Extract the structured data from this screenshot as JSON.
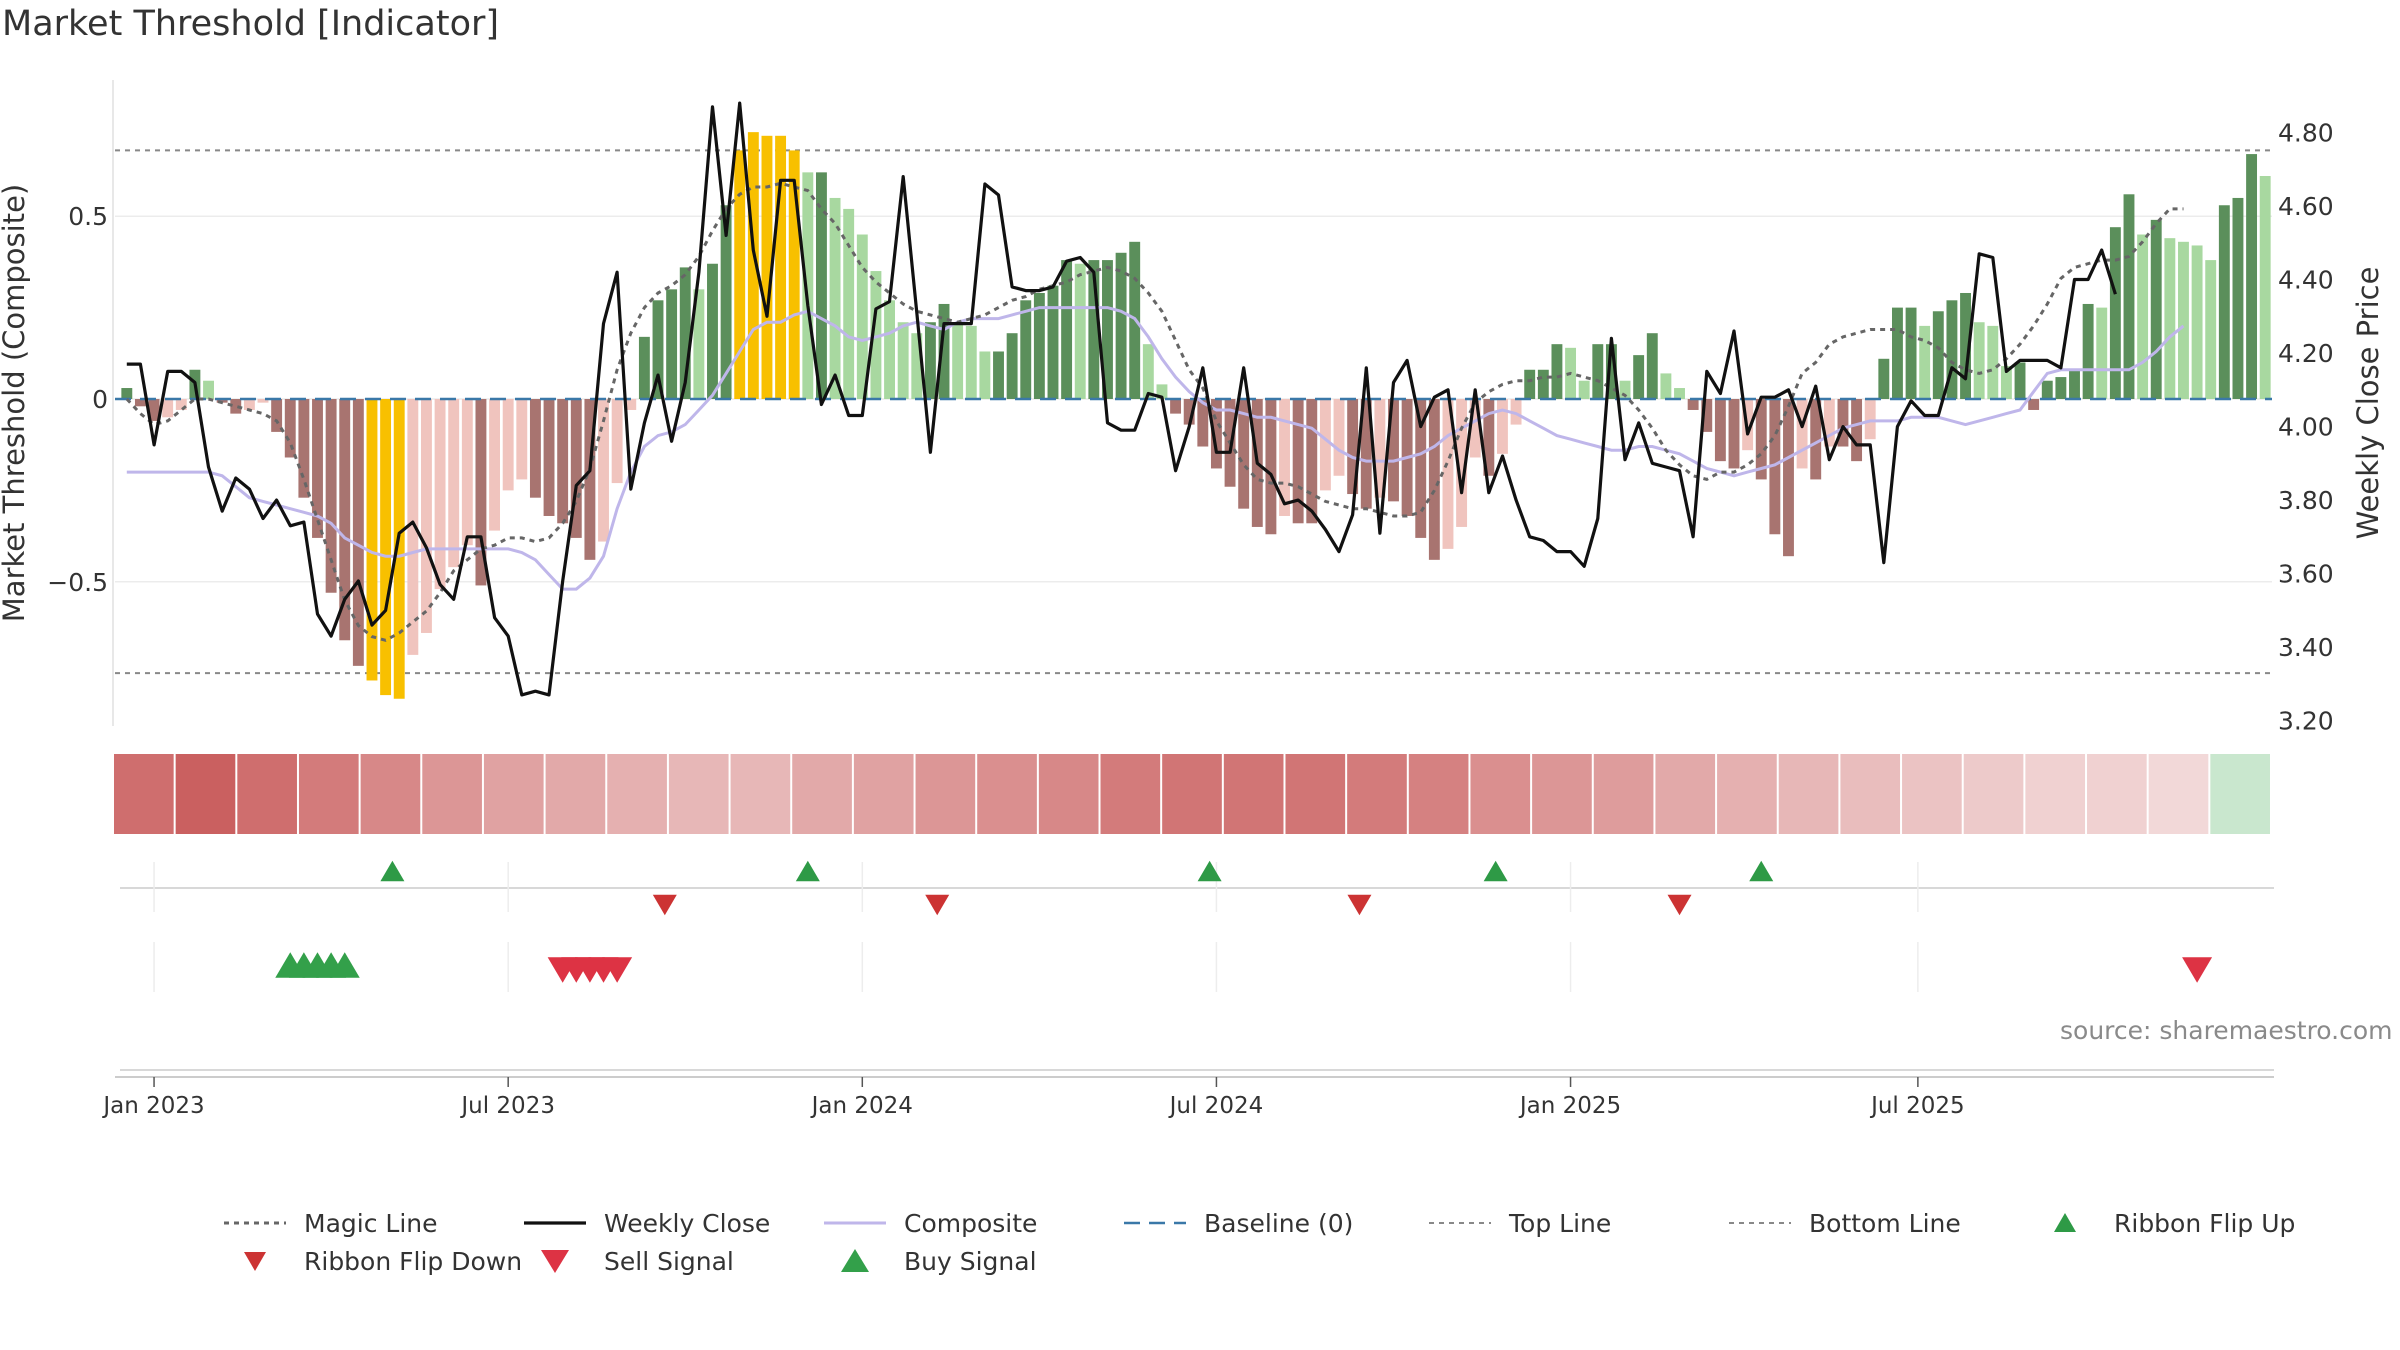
{
  "chart_data": {
    "type": "bar",
    "title": "Market Threshold [Indicator]",
    "ylabel": "Market Threshold (Composite)",
    "y2label": "Weekly Close Price",
    "source": "source: sharemaestro.com",
    "ylim": [
      -0.9,
      0.9
    ],
    "y2lim": [
      3.18,
      4.97
    ],
    "yticks": [
      {
        "v": 0.5,
        "label": "0.5"
      },
      {
        "v": 0,
        "label": "0"
      },
      {
        "v": -0.5,
        "label": "−0.5"
      }
    ],
    "y2ticks": [
      "3.20",
      "3.40",
      "3.60",
      "3.80",
      "4.00",
      "4.20",
      "4.40",
      "4.60",
      "4.80"
    ],
    "xticks": [
      {
        "label": "Jan 2023",
        "index": 2
      },
      {
        "label": "Jul 2023",
        "index": 28
      },
      {
        "label": "Jan 2024",
        "index": 54
      },
      {
        "label": "Jul 2024",
        "index": 80
      },
      {
        "label": "Jan 2025",
        "index": 106
      },
      {
        "label": "Jul 2025",
        "index": 131.5
      }
    ],
    "top_line": 0.68,
    "bottom_line": -0.75,
    "baseline": 0,
    "composite": [
      0.03,
      -0.02,
      -0.06,
      -0.05,
      -0.03,
      0.08,
      0.05,
      -0.01,
      -0.04,
      -0.03,
      -0.01,
      -0.09,
      -0.16,
      -0.27,
      -0.38,
      -0.53,
      -0.66,
      -0.73,
      -0.77,
      -0.81,
      -0.82,
      -0.7,
      -0.64,
      -0.52,
      -0.46,
      -0.4,
      -0.51,
      -0.36,
      -0.25,
      -0.22,
      -0.27,
      -0.32,
      -0.34,
      -0.38,
      -0.44,
      -0.39,
      -0.23,
      -0.03,
      0.17,
      0.27,
      0.3,
      0.36,
      0.3,
      0.37,
      0.53,
      0.68,
      0.73,
      0.72,
      0.72,
      0.68,
      0.62,
      0.62,
      0.55,
      0.52,
      0.45,
      0.35,
      0.27,
      0.21,
      0.18,
      0.21,
      0.26,
      0.21,
      0.2,
      0.13,
      0.13,
      0.18,
      0.27,
      0.29,
      0.31,
      0.38,
      0.37,
      0.38,
      0.38,
      0.4,
      0.43,
      0.15,
      0.04,
      -0.04,
      -0.07,
      -0.13,
      -0.19,
      -0.24,
      -0.3,
      -0.35,
      -0.37,
      -0.32,
      -0.34,
      -0.34,
      -0.25,
      -0.21,
      -0.26,
      -0.3,
      -0.27,
      -0.28,
      -0.32,
      -0.38,
      -0.44,
      -0.41,
      -0.35,
      -0.16,
      -0.21,
      -0.15,
      -0.07,
      0.08,
      0.08,
      0.15,
      0.14,
      0.05,
      0.15,
      0.15,
      0.05,
      0.12,
      0.18,
      0.07,
      0.03,
      -0.03,
      -0.09,
      -0.17,
      -0.19,
      -0.14,
      -0.22,
      -0.37,
      -0.43,
      -0.19,
      -0.22,
      -0.13,
      -0.13,
      -0.17,
      -0.11,
      0.11,
      0.25,
      0.25,
      0.2,
      0.24,
      0.27,
      0.29,
      0.21,
      0.2,
      0.09,
      0.1,
      -0.03,
      0.05,
      0.06,
      0.08,
      0.26,
      0.25,
      0.47,
      0.56,
      0.45,
      0.49,
      0.44,
      0.43,
      0.42,
      0.38,
      0.53,
      0.55,
      0.67,
      0.61
    ],
    "weekly_close": [
      4.17,
      4.17,
      3.95,
      4.15,
      4.15,
      4.12,
      3.89,
      3.77,
      3.86,
      3.83,
      3.75,
      3.8,
      3.73,
      3.74,
      3.49,
      3.43,
      3.53,
      3.58,
      3.46,
      3.5,
      3.71,
      3.74,
      3.67,
      3.57,
      3.53,
      3.7,
      3.7,
      3.48,
      3.43,
      3.27,
      3.28,
      3.27,
      3.58,
      3.84,
      3.88,
      4.28,
      4.42,
      3.83,
      4.01,
      4.14,
      3.96,
      4.12,
      4.42,
      4.87,
      4.52,
      4.88,
      4.48,
      4.3,
      4.67,
      4.67,
      4.33,
      4.06,
      4.14,
      4.03,
      4.03,
      4.32,
      4.34,
      4.68,
      4.31,
      3.93,
      4.28,
      4.28,
      4.28,
      4.66,
      4.63,
      4.38,
      4.37,
      4.37,
      4.38,
      4.45,
      4.46,
      4.42,
      4.01,
      3.99,
      3.99,
      4.09,
      4.08,
      3.88,
      4.0,
      4.16,
      3.93,
      3.93,
      4.16,
      3.9,
      3.87,
      3.79,
      3.8,
      3.77,
      3.72,
      3.66,
      3.76,
      4.16,
      3.71,
      4.12,
      4.18,
      4.0,
      4.08,
      4.1,
      3.82,
      4.1,
      3.82,
      3.92,
      3.8,
      3.7,
      3.69,
      3.66,
      3.66,
      3.62,
      3.75,
      4.24,
      3.91,
      4.01,
      3.9,
      3.89,
      3.88,
      3.7,
      4.15,
      4.09,
      4.26,
      3.98,
      4.08,
      4.08,
      4.1,
      4.0,
      4.11,
      3.91,
      4.0,
      3.95,
      3.95,
      3.63,
      4.0,
      4.07,
      4.03,
      4.03,
      4.16,
      4.13,
      4.47,
      4.46,
      4.15,
      4.18,
      4.18,
      4.18,
      4.16,
      4.4,
      4.4,
      4.48,
      4.36
    ],
    "magic_line": [
      0.0,
      -0.04,
      -0.07,
      -0.06,
      -0.03,
      0.0,
      0.0,
      -0.01,
      -0.02,
      -0.03,
      -0.04,
      -0.06,
      -0.12,
      -0.22,
      -0.33,
      -0.44,
      -0.55,
      -0.62,
      -0.65,
      -0.66,
      -0.64,
      -0.61,
      -0.58,
      -0.53,
      -0.47,
      -0.44,
      -0.41,
      -0.4,
      -0.38,
      -0.38,
      -0.39,
      -0.38,
      -0.34,
      -0.28,
      -0.19,
      -0.06,
      0.08,
      0.18,
      0.25,
      0.29,
      0.31,
      0.34,
      0.39,
      0.46,
      0.52,
      0.56,
      0.58,
      0.58,
      0.59,
      0.58,
      0.57,
      0.52,
      0.48,
      0.42,
      0.36,
      0.32,
      0.29,
      0.26,
      0.24,
      0.23,
      0.22,
      0.21,
      0.22,
      0.23,
      0.25,
      0.27,
      0.28,
      0.3,
      0.31,
      0.32,
      0.34,
      0.35,
      0.36,
      0.35,
      0.33,
      0.29,
      0.24,
      0.16,
      0.08,
      0.03,
      -0.06,
      -0.12,
      -0.18,
      -0.22,
      -0.23,
      -0.23,
      -0.24,
      -0.26,
      -0.28,
      -0.29,
      -0.3,
      -0.3,
      -0.31,
      -0.32,
      -0.32,
      -0.31,
      -0.25,
      -0.17,
      -0.08,
      -0.01,
      0.02,
      0.04,
      0.05,
      0.05,
      0.06,
      0.06,
      0.07,
      0.06,
      0.05,
      0.03,
      0.01,
      -0.03,
      -0.08,
      -0.14,
      -0.18,
      -0.21,
      -0.22,
      -0.2,
      -0.2,
      -0.18,
      -0.15,
      -0.1,
      -0.02,
      0.07,
      0.1,
      0.15,
      0.17,
      0.18,
      0.19,
      0.19,
      0.19,
      0.17,
      0.16,
      0.14,
      0.1,
      0.08,
      0.07,
      0.08,
      0.11,
      0.15,
      0.2,
      0.26,
      0.33,
      0.36,
      0.37,
      0.38,
      0.38,
      0.39,
      0.43,
      0.48,
      0.52,
      0.52
    ],
    "composite_line": [
      -0.2,
      -0.2,
      -0.2,
      -0.2,
      -0.2,
      -0.2,
      -0.2,
      -0.21,
      -0.24,
      -0.27,
      -0.28,
      -0.29,
      -0.3,
      -0.31,
      -0.32,
      -0.34,
      -0.38,
      -0.4,
      -0.42,
      -0.43,
      -0.43,
      -0.42,
      -0.41,
      -0.41,
      -0.41,
      -0.41,
      -0.41,
      -0.41,
      -0.41,
      -0.42,
      -0.44,
      -0.48,
      -0.52,
      -0.52,
      -0.49,
      -0.43,
      -0.3,
      -0.2,
      -0.13,
      -0.1,
      -0.09,
      -0.07,
      -0.03,
      0.01,
      0.07,
      0.13,
      0.19,
      0.21,
      0.21,
      0.23,
      0.24,
      0.22,
      0.2,
      0.17,
      0.16,
      0.17,
      0.18,
      0.2,
      0.21,
      0.2,
      0.19,
      0.21,
      0.22,
      0.22,
      0.22,
      0.23,
      0.24,
      0.25,
      0.25,
      0.25,
      0.25,
      0.25,
      0.25,
      0.24,
      0.22,
      0.17,
      0.11,
      0.06,
      0.02,
      -0.01,
      -0.03,
      -0.03,
      -0.04,
      -0.05,
      -0.05,
      -0.06,
      -0.07,
      -0.08,
      -0.11,
      -0.14,
      -0.16,
      -0.17,
      -0.17,
      -0.17,
      -0.16,
      -0.15,
      -0.13,
      -0.1,
      -0.08,
      -0.06,
      -0.04,
      -0.03,
      -0.04,
      -0.06,
      -0.08,
      -0.1,
      -0.11,
      -0.12,
      -0.13,
      -0.14,
      -0.14,
      -0.13,
      -0.13,
      -0.14,
      -0.15,
      -0.17,
      -0.19,
      -0.2,
      -0.21,
      -0.2,
      -0.19,
      -0.18,
      -0.16,
      -0.14,
      -0.12,
      -0.1,
      -0.08,
      -0.07,
      -0.06,
      -0.06,
      -0.06,
      -0.05,
      -0.05,
      -0.05,
      -0.06,
      -0.07,
      -0.06,
      -0.05,
      -0.04,
      -0.03,
      0.02,
      0.07,
      0.08,
      0.08,
      0.08,
      0.08,
      0.08,
      0.08,
      0.1,
      0.13,
      0.17,
      0.2
    ],
    "ribbon": [
      0.85,
      0.95,
      0.85,
      0.75,
      0.65,
      0.55,
      0.45,
      0.4,
      0.35,
      0.3,
      0.3,
      0.4,
      0.45,
      0.55,
      0.6,
      0.65,
      0.75,
      0.8,
      0.8,
      0.8,
      0.75,
      0.7,
      0.6,
      0.55,
      0.5,
      0.4,
      0.35,
      0.3,
      0.25,
      0.2,
      0.15,
      0.1,
      0.1,
      0.05,
      0.0
    ],
    "ribbon_flip_up": [
      19.5,
      50,
      79.5,
      100.5,
      120
    ],
    "ribbon_flip_down": [
      39.5,
      59.5,
      90.5,
      114
    ],
    "buy_signal": [
      12,
      13,
      14,
      15,
      16
    ],
    "sell_signal": [
      32,
      33,
      34,
      35,
      36,
      152
    ],
    "legend": [
      {
        "key": "magic",
        "label": "Magic Line"
      },
      {
        "key": "weekly",
        "label": "Weekly Close"
      },
      {
        "key": "composite",
        "label": "Composite"
      },
      {
        "key": "baseline",
        "label": "Baseline (0)"
      },
      {
        "key": "top",
        "label": "Top Line"
      },
      {
        "key": "bottom",
        "label": "Bottom Line"
      },
      {
        "key": "flipup",
        "label": "Ribbon Flip Up"
      },
      {
        "key": "flipdown",
        "label": "Ribbon Flip Down"
      },
      {
        "key": "sell",
        "label": "Sell Signal"
      },
      {
        "key": "buy",
        "label": "Buy Signal"
      }
    ],
    "colors": {
      "bar_strong_pos": "#5b8f5b",
      "bar_weak_pos": "#a8d8a0",
      "bar_strong_neg": "#a87470",
      "bar_weak_neg": "#f0c4be",
      "bar_extreme": "#f8c000",
      "magic_line": "#666666",
      "weekly_close": "#111111",
      "composite_line": "#bfb6ea",
      "baseline": "#3a78a8",
      "threshold": "#888888",
      "flip_up": "#2e9a46",
      "flip_down": "#cc3333",
      "buy": "#33a04a",
      "sell": "#dd3344"
    }
  }
}
